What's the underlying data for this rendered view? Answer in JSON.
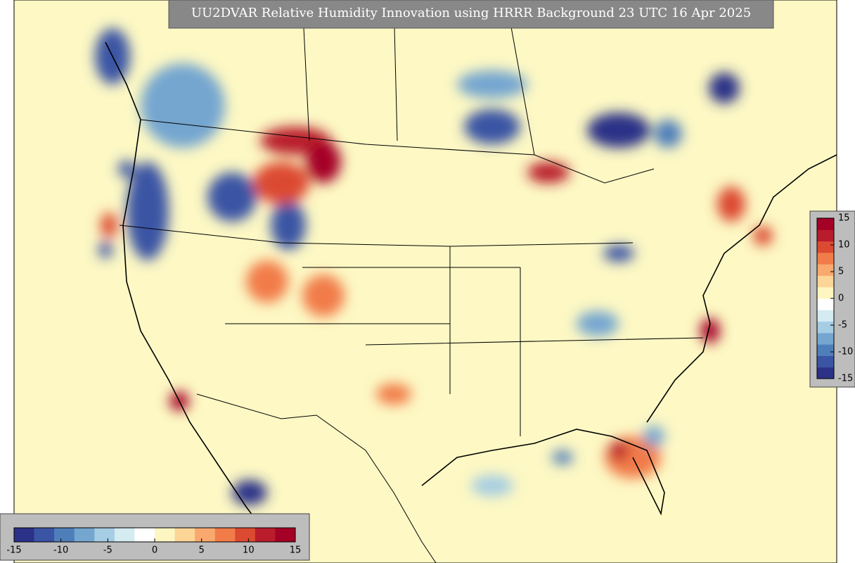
{
  "title": "UU2DVAR Relative Humidity Innovation using HRRR Background 23 UTC 16 Apr 2025",
  "colorbars": [
    {
      "orientation": "vertical",
      "range": [
        -15,
        15
      ],
      "ticks": [
        -15,
        -10,
        -5,
        0,
        5,
        10,
        15
      ],
      "colors": [
        "#2c3287",
        "#3a55a4",
        "#4f7fbb",
        "#74a6d0",
        "#a5cde3",
        "#d4ebf1",
        "#ffffff",
        "#fdf6c0",
        "#fcd597",
        "#f9a96e",
        "#f17c4a",
        "#dc4a32",
        "#b91c2b",
        "#a50026"
      ]
    },
    {
      "orientation": "horizontal",
      "range": [
        -15,
        15
      ],
      "ticks": [
        -15,
        -10,
        -5,
        0,
        5,
        10,
        15
      ],
      "colors": [
        "#2c3287",
        "#3a55a4",
        "#4f7fbb",
        "#74a6d0",
        "#a5cde3",
        "#d4ebf1",
        "#ffffff",
        "#fdf6c0",
        "#fcd597",
        "#f9a96e",
        "#f17c4a",
        "#dc4a32",
        "#b91c2b",
        "#a50026"
      ]
    }
  ]
}
